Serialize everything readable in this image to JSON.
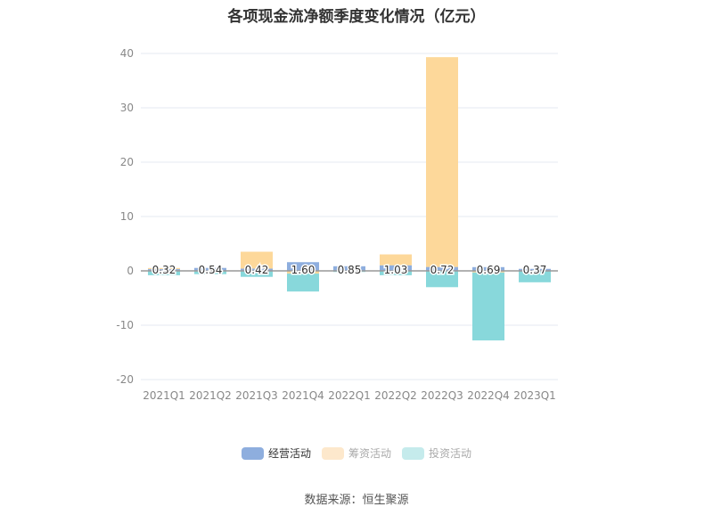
{
  "title": "各项现金流净额季度变化情况（亿元）",
  "source": "数据来源：恒生聚源",
  "legend": [
    {
      "label": "经营活动",
      "color": "#8eaede",
      "text_color": "#333333",
      "active": true
    },
    {
      "label": "筹资活动",
      "color": "#fde8cc",
      "text_color": "#aaaaaa",
      "active": false
    },
    {
      "label": "投资活动",
      "color": "#c5ebec",
      "text_color": "#aaaaaa",
      "active": false
    }
  ],
  "colors": {
    "operating": "#8eaede",
    "financing": "#fdd89a",
    "investing": "#88d8db",
    "grid": "#e6eaf2",
    "axis_label": "#888888",
    "zero_line": "#999999"
  },
  "chart_data": {
    "type": "bar",
    "stacked": true,
    "title": "各项现金流净额季度变化情况（亿元）",
    "xlabel": "",
    "ylabel": "",
    "ylim": [
      -20,
      40
    ],
    "yticks": [
      40,
      30,
      20,
      10,
      0,
      -10,
      -20
    ],
    "grid": true,
    "legend_position": "bottom",
    "categories": [
      "2021Q1",
      "2021Q2",
      "2021Q3",
      "2021Q4",
      "2022Q1",
      "2022Q2",
      "2022Q3",
      "2022Q4",
      "2023Q1"
    ],
    "series": [
      {
        "name": "经营活动",
        "values": [
          0.32,
          0.54,
          0.42,
          1.6,
          0.85,
          1.03,
          0.72,
          0.69,
          0.37
        ]
      },
      {
        "name": "筹资活动",
        "values": [
          0.2,
          -0.1,
          3.1,
          -0.5,
          0.0,
          2.0,
          38.6,
          -0.3,
          0.0
        ]
      },
      {
        "name": "投资活动",
        "values": [
          -0.8,
          -0.5,
          -1.1,
          -3.3,
          -0.2,
          -0.8,
          -3.0,
          -12.5,
          -2.1
        ]
      }
    ],
    "data_labels": [
      "0.32",
      "0.54",
      "0.42",
      "1.60",
      "0.85",
      "1.03",
      "0.72",
      "0.69",
      "0.37"
    ],
    "annotations": [
      "数据来源：恒生聚源"
    ]
  }
}
